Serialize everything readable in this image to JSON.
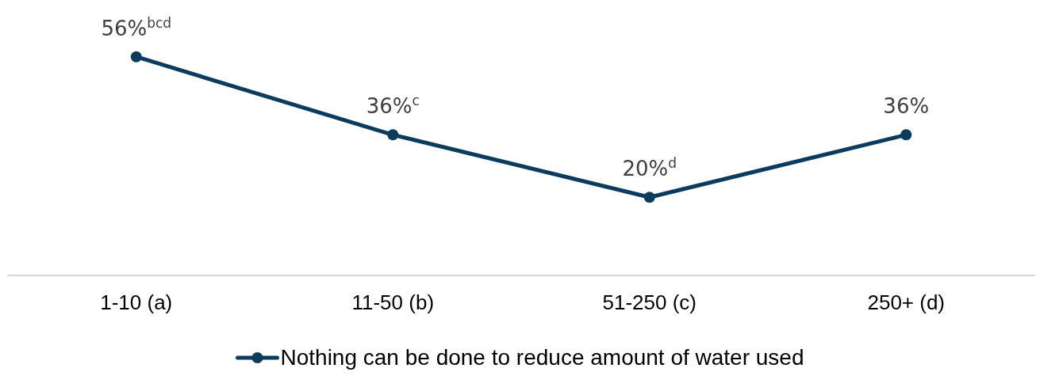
{
  "chart_data": {
    "type": "line",
    "categories": [
      "1-10 (a)",
      "11-50 (b)",
      "51-250 (c)",
      "250+ (d)"
    ],
    "series": [
      {
        "name": "Nothing can be done to reduce amount of water used",
        "color": "#0b3c5d",
        "values": [
          56,
          36,
          20,
          36
        ],
        "value_labels": [
          "56%$^{bcd}$",
          "36%$^{c}$",
          "20%$^{d}$",
          "36%"
        ]
      }
    ],
    "tick_labels": "x",
    "legend": "bottom",
    "marker": "circle",
    "line_style": "solid"
  }
}
